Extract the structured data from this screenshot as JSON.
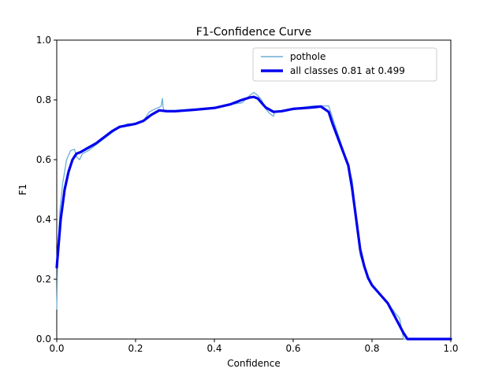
{
  "chart_data": {
    "type": "line",
    "title": "F1-Confidence Curve",
    "xlabel": "Confidence",
    "ylabel": "F1",
    "xlim": [
      0,
      1
    ],
    "ylim": [
      0,
      1
    ],
    "xticks": [
      "0.0",
      "0.2",
      "0.4",
      "0.6",
      "0.8",
      "1.0"
    ],
    "yticks": [
      "0.0",
      "0.2",
      "0.4",
      "0.6",
      "0.8",
      "1.0"
    ],
    "grid": false,
    "legend_position": "top-right",
    "series": [
      {
        "name": "pothole",
        "color": "#6baed6",
        "style": "thin",
        "x": [
          0.0,
          0.003,
          0.008,
          0.015,
          0.025,
          0.035,
          0.045,
          0.05,
          0.058,
          0.065,
          0.08,
          0.1,
          0.12,
          0.14,
          0.16,
          0.18,
          0.2,
          0.22,
          0.235,
          0.25,
          0.26,
          0.265,
          0.268,
          0.27,
          0.272,
          0.28,
          0.3,
          0.35,
          0.4,
          0.44,
          0.47,
          0.49,
          0.5,
          0.51,
          0.52,
          0.53,
          0.54,
          0.55,
          0.553,
          0.56,
          0.6,
          0.65,
          0.67,
          0.68,
          0.69,
          0.695,
          0.7,
          0.72,
          0.74,
          0.75,
          0.76,
          0.77,
          0.78,
          0.79,
          0.8,
          0.82,
          0.84,
          0.86,
          0.87,
          0.875,
          0.88,
          0.9,
          0.95,
          1.0
        ],
        "y": [
          0.1,
          0.3,
          0.43,
          0.52,
          0.6,
          0.63,
          0.635,
          0.61,
          0.6,
          0.62,
          0.63,
          0.65,
          0.67,
          0.69,
          0.71,
          0.72,
          0.72,
          0.73,
          0.76,
          0.77,
          0.775,
          0.78,
          0.805,
          0.775,
          0.765,
          0.765,
          0.765,
          0.77,
          0.775,
          0.785,
          0.79,
          0.815,
          0.825,
          0.815,
          0.8,
          0.77,
          0.755,
          0.745,
          0.76,
          0.76,
          0.77,
          0.78,
          0.78,
          0.78,
          0.78,
          0.76,
          0.74,
          0.66,
          0.58,
          0.53,
          0.4,
          0.28,
          0.24,
          0.2,
          0.18,
          0.15,
          0.12,
          0.085,
          0.07,
          0.035,
          0.0,
          0.0,
          0.0,
          0.0
        ]
      },
      {
        "name": "all classes 0.81 at 0.499",
        "color": "#0000ee",
        "style": "thick",
        "x": [
          0.0,
          0.005,
          0.01,
          0.02,
          0.03,
          0.04,
          0.05,
          0.06,
          0.08,
          0.1,
          0.12,
          0.14,
          0.16,
          0.18,
          0.2,
          0.22,
          0.24,
          0.26,
          0.28,
          0.3,
          0.35,
          0.4,
          0.44,
          0.47,
          0.49,
          0.5,
          0.51,
          0.52,
          0.53,
          0.55,
          0.57,
          0.6,
          0.65,
          0.67,
          0.69,
          0.7,
          0.72,
          0.74,
          0.75,
          0.76,
          0.77,
          0.78,
          0.79,
          0.8,
          0.82,
          0.84,
          0.86,
          0.88,
          0.89,
          0.9,
          0.95,
          1.0
        ],
        "y": [
          0.24,
          0.32,
          0.4,
          0.5,
          0.56,
          0.6,
          0.62,
          0.625,
          0.64,
          0.655,
          0.675,
          0.695,
          0.71,
          0.715,
          0.72,
          0.73,
          0.75,
          0.765,
          0.762,
          0.762,
          0.767,
          0.773,
          0.785,
          0.8,
          0.808,
          0.81,
          0.805,
          0.79,
          0.775,
          0.76,
          0.762,
          0.77,
          0.775,
          0.778,
          0.76,
          0.72,
          0.65,
          0.58,
          0.5,
          0.4,
          0.3,
          0.245,
          0.205,
          0.18,
          0.15,
          0.12,
          0.07,
          0.02,
          0.0,
          0.0,
          0.0,
          0.0
        ]
      }
    ]
  }
}
